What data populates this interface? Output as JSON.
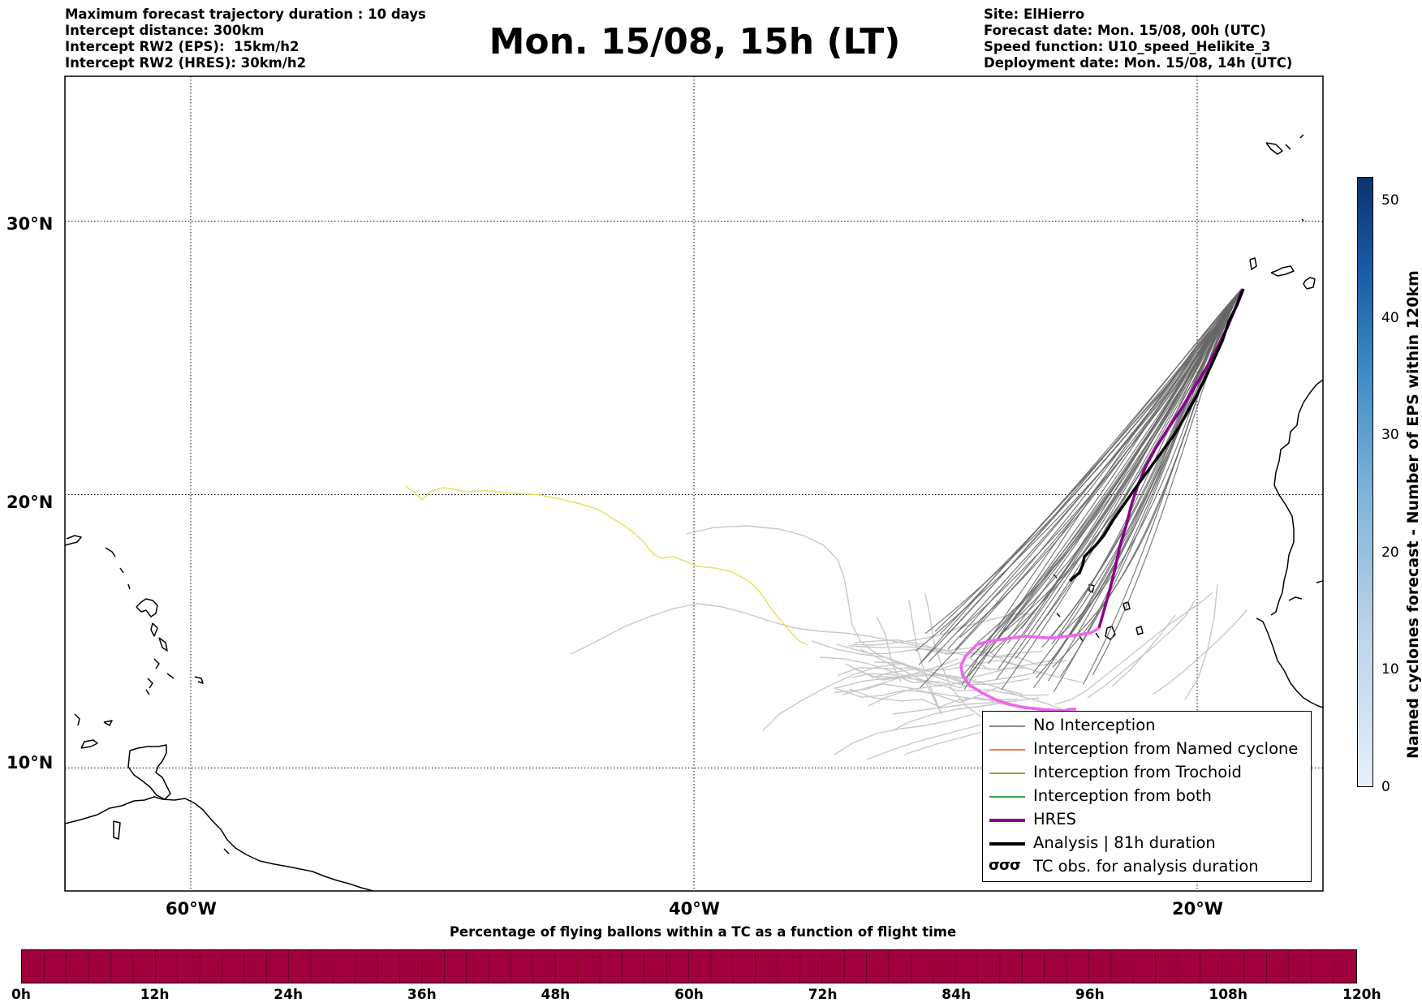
{
  "header": {
    "left_lines": [
      "Maximum forecast trajectory duration : 10 days",
      "Intercept distance: 300km",
      "Intercept RW2 (EPS):  15km/h2",
      "Intercept RW2 (HRES): 30km/h2"
    ],
    "title": "Mon. 15/08, 15h (LT)",
    "right_lines": [
      "Site: ElHierro",
      "Forecast date: Mon. 15/08, 00h (UTC)",
      "Speed function: U10_speed_Helikite_3",
      "Deployment date: Mon. 15/08, 14h (UTC)"
    ]
  },
  "map": {
    "lat_labels": [
      "30°N",
      "20°N",
      "10°N"
    ],
    "lon_labels": [
      "60°W",
      "40°W",
      "20°W"
    ],
    "lat_ticks": [
      30,
      20,
      10
    ],
    "lon_ticks": [
      -60,
      -40,
      -20
    ],
    "extent": {
      "lon_min": -65,
      "lon_max": -15,
      "lat_min": 5.5,
      "lat_max": 35.3
    },
    "grid": "dotted",
    "colors": {
      "no_interception": "#666666",
      "named_cyclone": "#ff4500",
      "trochoid": "#808000",
      "both": "#008000",
      "hres": "#8b008b",
      "hres_late": "#ee66ee",
      "analysis": "#000000",
      "faint_members": "#c8c8c8",
      "yellow_member": "#e8e060",
      "coastline": "#000000"
    }
  },
  "legend": {
    "items": [
      {
        "label": "No Interception",
        "color": "#666666",
        "width": 1.2,
        "kind": "line"
      },
      {
        "label": "Interception from Named cyclone",
        "color": "#ff4500",
        "width": 1.2,
        "kind": "line"
      },
      {
        "label": "Interception from Trochoid",
        "color": "#808000",
        "width": 1.2,
        "kind": "line"
      },
      {
        "label": "Interception from both",
        "color": "#008000",
        "width": 1.2,
        "kind": "line"
      },
      {
        "label": "HRES",
        "color": "#8b008b",
        "width": 4,
        "kind": "line"
      },
      {
        "label": "Analysis | 81h duration",
        "color": "#000000",
        "width": 4,
        "kind": "line"
      },
      {
        "label": "TC obs. for analysis duration",
        "glyph": "σσσ",
        "kind": "glyph"
      }
    ]
  },
  "colorbar_vertical": {
    "title": "Named cyclones forecast - Number of EPS within 120km",
    "ticks": [
      "0",
      "10",
      "20",
      "30",
      "40",
      "50"
    ],
    "range": [
      0,
      52
    ]
  },
  "colorbar_horizontal": {
    "title": "Percentage of flying ballons within a TC as a function of flight time",
    "ticks": [
      "0h",
      "12h",
      "24h",
      "36h",
      "48h",
      "60h",
      "72h",
      "84h",
      "96h",
      "108h",
      "120h"
    ],
    "color": "#a0003c"
  }
}
